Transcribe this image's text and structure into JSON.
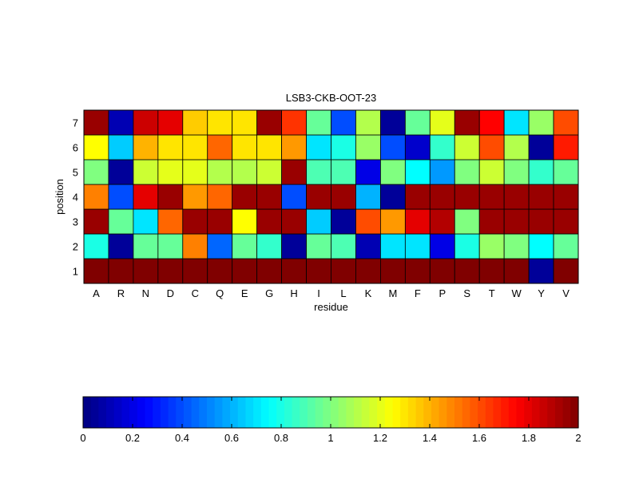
{
  "chart_data": {
    "type": "heatmap",
    "title": "LSB3-CKB-OOT-23",
    "xlabel": "residue",
    "ylabel": "position",
    "x_categories": [
      "A",
      "R",
      "N",
      "D",
      "C",
      "Q",
      "E",
      "G",
      "H",
      "I",
      "L",
      "K",
      "M",
      "F",
      "P",
      "S",
      "T",
      "W",
      "Y",
      "V"
    ],
    "y_categories": [
      "1",
      "2",
      "3",
      "4",
      "5",
      "6",
      "7"
    ],
    "values": [
      [
        2.0,
        2.0,
        2.0,
        2.0,
        2.0,
        2.0,
        2.0,
        2.0,
        2.0,
        2.0,
        2.0,
        2.0,
        2.0,
        2.0,
        2.0,
        2.0,
        2.0,
        2.0,
        0.05,
        2.0
      ],
      [
        0.8,
        0.05,
        0.95,
        0.95,
        1.5,
        0.45,
        0.95,
        0.85,
        0.05,
        0.95,
        0.9,
        0.1,
        0.7,
        0.7,
        0.2,
        0.8,
        1.05,
        1.0,
        0.75,
        0.95
      ],
      [
        1.95,
        0.95,
        0.7,
        1.55,
        1.95,
        1.95,
        1.25,
        1.95,
        1.95,
        0.65,
        0.05,
        1.6,
        1.45,
        1.8,
        1.9,
        1.0,
        1.95,
        1.95,
        1.95,
        1.95
      ],
      [
        1.5,
        0.4,
        1.8,
        1.95,
        1.45,
        1.55,
        1.95,
        1.95,
        0.4,
        1.95,
        1.95,
        0.6,
        0.05,
        1.95,
        1.95,
        1.95,
        1.95,
        1.95,
        1.95,
        1.95
      ],
      [
        1.0,
        0.05,
        1.15,
        1.2,
        1.2,
        1.1,
        1.1,
        1.15,
        1.95,
        0.9,
        0.9,
        0.2,
        1.0,
        0.75,
        0.55,
        1.0,
        1.15,
        1.0,
        0.85,
        0.95
      ],
      [
        1.25,
        0.65,
        1.4,
        1.3,
        1.3,
        1.55,
        1.3,
        1.3,
        1.45,
        0.7,
        0.8,
        1.05,
        0.4,
        0.15,
        0.85,
        1.15,
        1.6,
        1.1,
        0.05,
        1.7
      ],
      [
        1.95,
        0.1,
        1.85,
        1.8,
        1.35,
        1.3,
        1.3,
        1.95,
        1.65,
        0.95,
        0.4,
        1.1,
        0.05,
        0.95,
        1.2,
        1.95,
        1.75,
        0.7,
        1.05,
        1.6
      ]
    ],
    "colormap": "jet",
    "clim": [
      0,
      2
    ],
    "colorbar": {
      "orientation": "horizontal",
      "location": "bottom",
      "ticks": [
        0,
        0.2,
        0.4,
        0.6,
        0.8,
        1,
        1.2,
        1.4,
        1.6,
        1.8,
        2
      ],
      "tick_labels": [
        "0",
        "0.2",
        "0.4",
        "0.6",
        "0.8",
        "1",
        "1.2",
        "1.4",
        "1.6",
        "1.8",
        "2"
      ]
    },
    "grid": false
  }
}
